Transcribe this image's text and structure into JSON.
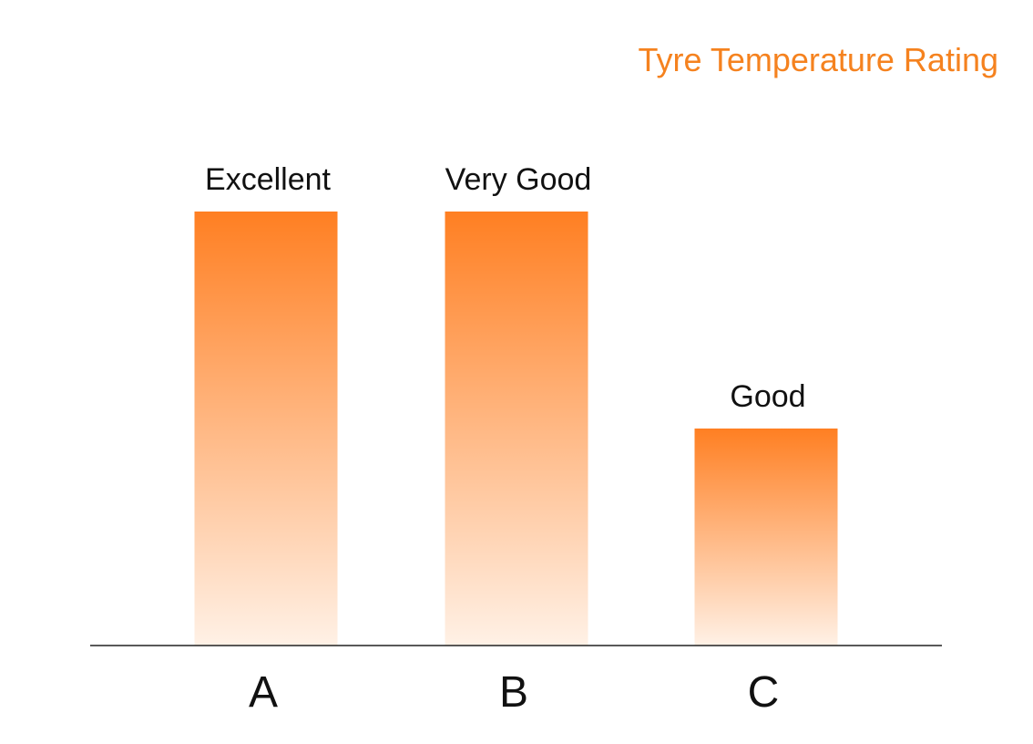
{
  "chart_data": {
    "type": "bar",
    "title": "Tyre Temperature Rating",
    "categories": [
      "A",
      "B",
      "C"
    ],
    "values": [
      2,
      2,
      1
    ],
    "data_labels": [
      "Excellent",
      "Very Good",
      "Good"
    ],
    "xlabel": "",
    "ylabel": "",
    "ylim": [
      0,
      2
    ],
    "grid": false,
    "legend": "none"
  },
  "colors": {
    "title": "#f5821f",
    "bar_top": "#ff7f22",
    "bar_bottom": "#fff1e6",
    "axis": "#222222"
  }
}
